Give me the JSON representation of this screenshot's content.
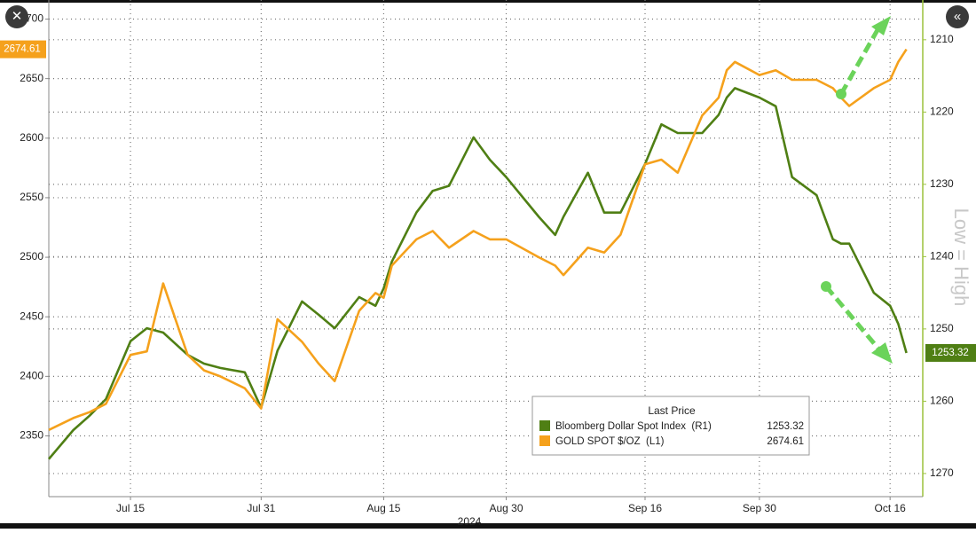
{
  "chart_data": {
    "type": "line",
    "x_label": "2024",
    "annotation": "Low = High",
    "legend_title": "Last Price",
    "x": [
      "2024-07-05",
      "2024-07-08",
      "2024-07-10",
      "2024-07-12",
      "2024-07-15",
      "2024-07-17",
      "2024-07-19",
      "2024-07-22",
      "2024-07-24",
      "2024-07-26",
      "2024-07-29",
      "2024-07-31",
      "2024-08-02",
      "2024-08-05",
      "2024-08-07",
      "2024-08-09",
      "2024-08-12",
      "2024-08-14",
      "2024-08-15",
      "2024-08-16",
      "2024-08-19",
      "2024-08-21",
      "2024-08-23",
      "2024-08-26",
      "2024-08-28",
      "2024-08-30",
      "2024-09-03",
      "2024-09-05",
      "2024-09-06",
      "2024-09-09",
      "2024-09-11",
      "2024-09-13",
      "2024-09-16",
      "2024-09-18",
      "2024-09-20",
      "2024-09-23",
      "2024-09-25",
      "2024-09-26",
      "2024-09-27",
      "2024-09-30",
      "2024-10-02",
      "2024-10-04",
      "2024-10-07",
      "2024-10-09",
      "2024-10-10",
      "2024-10-11",
      "2024-10-14",
      "2024-10-16",
      "2024-10-17",
      "2024-10-18"
    ],
    "series": [
      {
        "name": "Bloomberg Dollar Spot Index  (R1)",
        "color": "#4f7f14",
        "axis": "y2",
        "last_price": 1253.32,
        "values": [
          1268,
          1264,
          1262,
          1259.7,
          1251.7,
          1249.9,
          1250.5,
          1253.6,
          1254.8,
          1255.4,
          1256,
          1260.9,
          1253,
          1246.2,
          1248,
          1249.9,
          1245.6,
          1246.8,
          1244.4,
          1240.7,
          1233.9,
          1230.9,
          1230.2,
          1223.5,
          1226.6,
          1229,
          1234.5,
          1237,
          1234.5,
          1228.4,
          1233.9,
          1233.9,
          1227.2,
          1221.7,
          1222.9,
          1222.9,
          1220.4,
          1218,
          1216.7,
          1218,
          1219.2,
          1229,
          1231.5,
          1237.6,
          1238.2,
          1238.2,
          1245,
          1246.8,
          1249.3,
          1253.32
        ]
      },
      {
        "name": "GOLD SPOT $/OZ  (L1)",
        "color": "#f5a11c",
        "axis": "y",
        "last_price": 2674.61,
        "values": [
          2355,
          2365,
          2370,
          2377,
          2418,
          2421,
          2478,
          2418,
          2405,
          2400,
          2390,
          2373,
          2448,
          2429,
          2411,
          2396,
          2455,
          2470,
          2466,
          2493,
          2515,
          2522,
          2508,
          2522,
          2515,
          2515,
          2500,
          2493,
          2485,
          2508,
          2504,
          2519,
          2578,
          2582,
          2571,
          2619,
          2634,
          2657,
          2664,
          2653,
          2657,
          2649,
          2649,
          2642,
          2634,
          2627,
          2642,
          2649,
          2664,
          2674.61
        ]
      }
    ],
    "xlim": [
      "2024-07-05",
      "2024-10-20"
    ],
    "xticks": [
      {
        "value": "2024-07-15",
        "label": "Jul 15"
      },
      {
        "value": "2024-07-31",
        "label": "Jul 31"
      },
      {
        "value": "2024-08-15",
        "label": "Aug 15"
      },
      {
        "value": "2024-08-30",
        "label": "Aug 30"
      },
      {
        "value": "2024-09-16",
        "label": "Sep 16"
      },
      {
        "value": "2024-09-30",
        "label": "Sep 30"
      },
      {
        "value": "2024-10-16",
        "label": "Oct 16"
      }
    ],
    "ylim": [
      2299,
      2716
    ],
    "yticks": [
      2350,
      2400,
      2450,
      2500,
      2550,
      2600,
      2650,
      2700
    ],
    "y2lim": [
      1204.5,
      1273.2
    ],
    "y2ticks": [
      1210,
      1220,
      1230,
      1240,
      1250,
      1260,
      1270
    ],
    "y2_inverted": true,
    "grid": true
  }
}
